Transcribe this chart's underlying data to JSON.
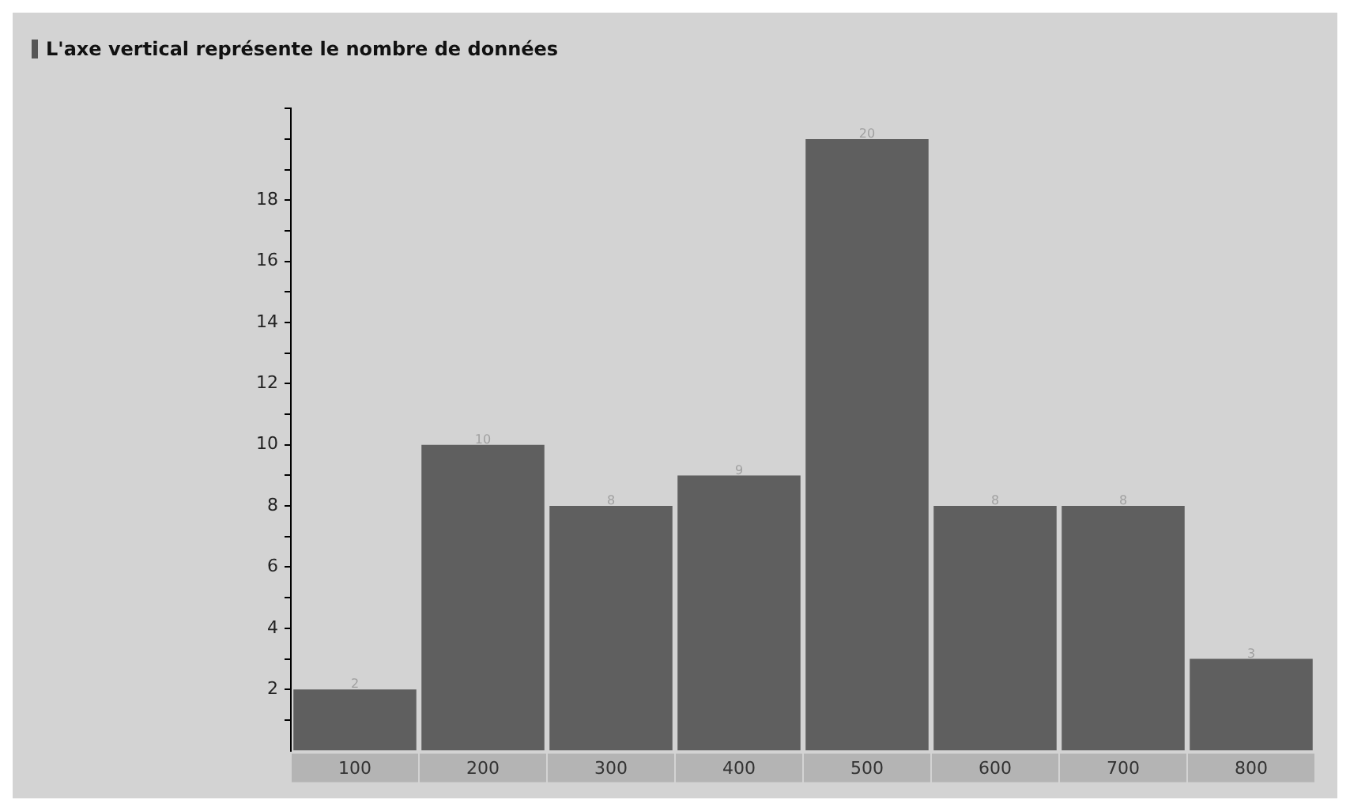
{
  "chart_data": {
    "type": "bar",
    "title": "L'axe vertical représente le nombre de données",
    "categories": [
      "100",
      "200",
      "300",
      "400",
      "500",
      "600",
      "700",
      "800"
    ],
    "values": [
      2,
      10,
      8,
      9,
      20,
      8,
      8,
      3
    ],
    "color": "#5f5f5f",
    "data_labels": true,
    "ylim": [
      0,
      21
    ],
    "yticks": [
      {
        "value": 1,
        "label": null
      },
      2,
      {
        "value": 3,
        "label": null
      },
      4,
      {
        "value": 5,
        "label": null
      },
      6,
      {
        "value": 7,
        "label": null
      },
      8,
      {
        "value": 9,
        "label": null
      },
      10,
      {
        "value": 11,
        "label": null
      },
      12,
      {
        "value": 13,
        "label": null
      },
      14,
      {
        "value": 15,
        "label": null
      },
      16,
      {
        "value": 17,
        "label": null
      },
      18,
      {
        "value": 19,
        "label": null
      },
      {
        "value": 20,
        "label": null
      },
      {
        "value": 21,
        "label": null
      }
    ],
    "grid": false,
    "legend": false
  }
}
